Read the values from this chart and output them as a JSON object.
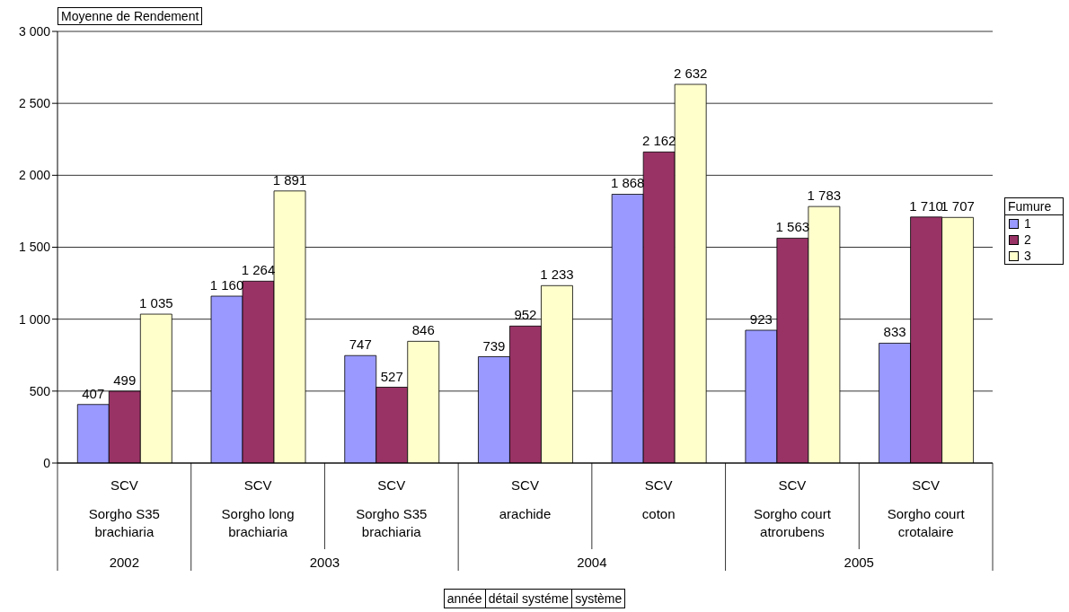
{
  "chart_data": {
    "type": "bar",
    "ylabel": "Moyenne de Rendement",
    "legend_title": "Fumure",
    "categories": [
      "SCV\nSorgho S35 brachiaria",
      "SCV\nSorgho long brachiaria",
      "SCV\nSorgho S35 brachiaria",
      "SCV\narachide",
      "SCV\ncoton",
      "SCV\nSorgho court atrorubens",
      "SCV\nSorgho court crotalaire"
    ],
    "series": [
      {
        "name": "1",
        "color": "#9999ff",
        "values": [
          407,
          1160,
          747,
          739,
          1868,
          923,
          833
        ],
        "value_labels": [
          "407",
          "1 160",
          "747",
          "739",
          "1 868",
          "923",
          "833"
        ]
      },
      {
        "name": "2",
        "color": "#993366",
        "values": [
          499,
          1264,
          527,
          952,
          2162,
          1563,
          1710
        ],
        "value_labels": [
          "499",
          "1 264",
          "527",
          "952",
          "2 162",
          "1 563",
          "1 710"
        ]
      },
      {
        "name": "3",
        "color": "#ffffcc",
        "values": [
          1035,
          1891,
          846,
          1233,
          2632,
          1783,
          1707
        ],
        "value_labels": [
          "1 035",
          "1 891",
          "846",
          "1 233",
          "2 632",
          "1 783",
          "1 707"
        ]
      }
    ],
    "ylim": [
      0,
      3000
    ],
    "yticks": [
      0,
      500,
      {
        "value": 1000,
        "label": "1 000"
      },
      {
        "value": 1500,
        "label": "1 500"
      },
      {
        "value": 2000,
        "label": "2 000"
      },
      {
        "value": 2500,
        "label": "2 500"
      },
      {
        "value": 3000,
        "label": "3 000"
      }
    ],
    "grid": "y",
    "legend": "right",
    "annotations": [
      "2002",
      "2003",
      "2004",
      "2005",
      "année",
      "détail systéme",
      "système"
    ]
  }
}
